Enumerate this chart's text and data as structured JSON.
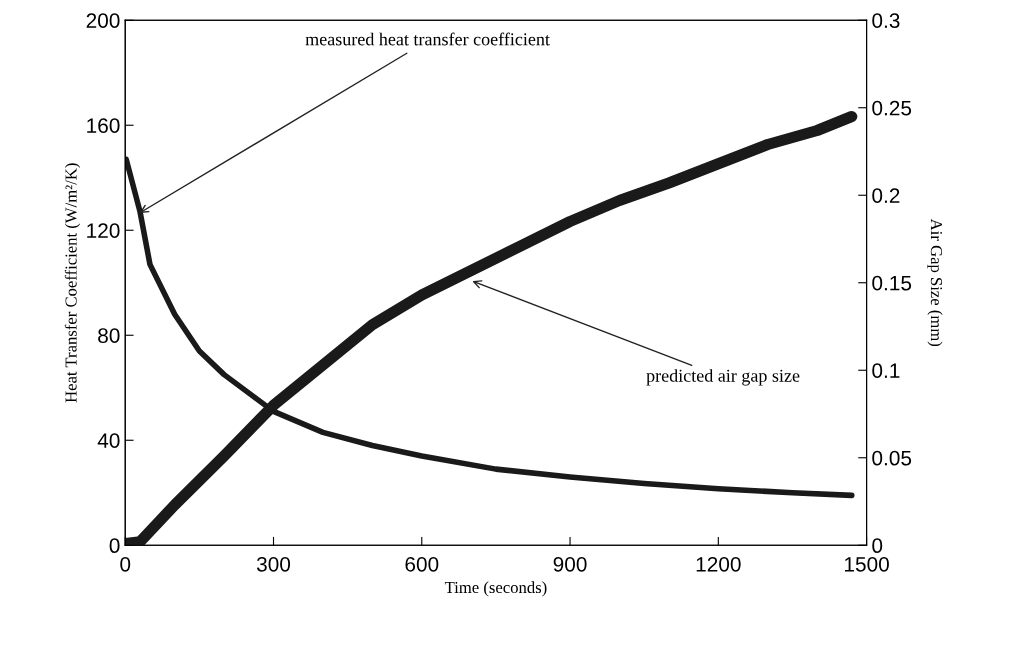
{
  "chart_data": {
    "type": "line",
    "xlabel": "Time (seconds)",
    "ylabel": "Heat Transfer Coefficient (W/m²/K)",
    "y2label": "Air Gap Size (mm)",
    "xlim": [
      0,
      1500
    ],
    "xticks": [
      0,
      300,
      600,
      900,
      1200,
      1500
    ],
    "ylim": [
      0,
      200
    ],
    "yticks": [
      0,
      40,
      80,
      120,
      160,
      200
    ],
    "y2lim": [
      0,
      0.3
    ],
    "y2ticks": [
      0,
      0.05,
      0.1,
      0.15,
      0.2,
      0.25,
      0.3
    ],
    "grid": false,
    "legend": false,
    "marker": "none",
    "line_style": "solid",
    "series": [
      {
        "color": "#1a1a1a",
        "x": [
          2,
          30,
          50,
          100,
          150,
          200,
          300,
          400,
          500,
          600,
          750,
          900,
          1050,
          1200,
          1350,
          1470
        ],
        "values": [
          147,
          127,
          107,
          88,
          74,
          65,
          51,
          43,
          38,
          34,
          29,
          26,
          23.5,
          21.5,
          20,
          19
        ]
      },
      {
        "color": "#1a1a1a",
        "axis": "y2",
        "x": [
          0,
          30,
          50,
          100,
          200,
          300,
          400,
          500,
          600,
          700,
          800,
          900,
          1000,
          1100,
          1200,
          1300,
          1400,
          1470
        ],
        "values": [
          0.001,
          0.002,
          0.008,
          0.023,
          0.051,
          0.08,
          0.103,
          0.126,
          0.143,
          0.157,
          0.171,
          0.185,
          0.197,
          0.207,
          0.218,
          0.229,
          0.237,
          0.245
        ]
      }
    ],
    "annotations": [
      {
        "text": "measured heat transfer coefficient",
        "x": 24,
        "y": 126
      },
      {
        "text": "predicted air gap size",
        "x": 697,
        "y": 101
      }
    ]
  }
}
